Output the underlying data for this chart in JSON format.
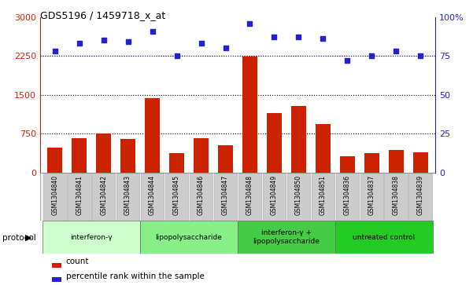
{
  "title": "GDS5196 / 1459718_x_at",
  "samples": [
    "GSM1304840",
    "GSM1304841",
    "GSM1304842",
    "GSM1304843",
    "GSM1304844",
    "GSM1304845",
    "GSM1304846",
    "GSM1304847",
    "GSM1304848",
    "GSM1304849",
    "GSM1304850",
    "GSM1304851",
    "GSM1304836",
    "GSM1304837",
    "GSM1304838",
    "GSM1304839"
  ],
  "counts": [
    480,
    660,
    750,
    650,
    1430,
    370,
    660,
    530,
    2240,
    1150,
    1280,
    940,
    310,
    370,
    440,
    390
  ],
  "percentiles": [
    78,
    83,
    85,
    84,
    91,
    75,
    83,
    80,
    96,
    87,
    87,
    86,
    72,
    75,
    78,
    75
  ],
  "groups": [
    {
      "label": "interferon-γ",
      "start": 0,
      "end": 3,
      "color": "#ccffcc"
    },
    {
      "label": "lipopolysaccharide",
      "start": 4,
      "end": 7,
      "color": "#88ee88"
    },
    {
      "label": "interferon-γ +\nlipopolysaccharide",
      "start": 8,
      "end": 11,
      "color": "#44cc44"
    },
    {
      "label": "untreated control",
      "start": 12,
      "end": 15,
      "color": "#22cc22"
    }
  ],
  "ylim_left": [
    0,
    3000
  ],
  "ylim_right": [
    0,
    100
  ],
  "yticks_left": [
    0,
    750,
    1500,
    2250,
    3000
  ],
  "yticks_right": [
    0,
    25,
    50,
    75,
    100
  ],
  "bar_color": "#cc2200",
  "dot_color": "#2222cc",
  "bg_color": "#ffffff",
  "tick_bg": "#cccccc",
  "axis_left_color": "#cc2200",
  "axis_right_color": "#2222cc"
}
